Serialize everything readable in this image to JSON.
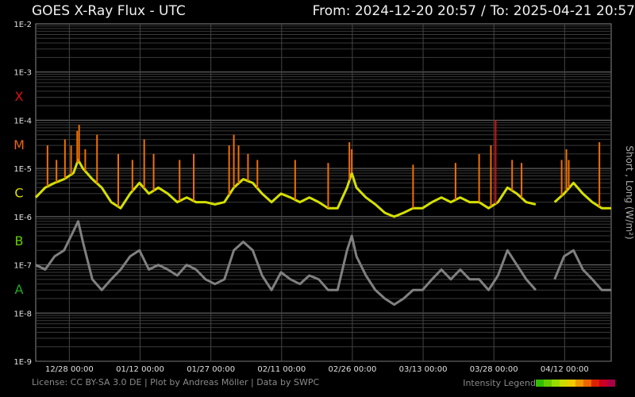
{
  "header": {
    "title": "GOES X-Ray Flux - UTC",
    "from_label": "From: 2024-12-20 20:57",
    "separator": "/",
    "to_label": "To: 2025-04-21 20:57"
  },
  "footer": {
    "license": "License: CC BY-SA 3.0 DE | Plot by Andreas Möller | Data by SWPC",
    "legend_label": "Intensity Legend",
    "legend_colors": [
      "#33bb00",
      "#66cc00",
      "#99dd00",
      "#ccdd00",
      "#eecc00",
      "#ee9900",
      "#ee6600",
      "#dd2200",
      "#cc0022",
      "#aa0044"
    ]
  },
  "colors": {
    "background": "#000000",
    "grid": "#555555",
    "short_series": "#808080",
    "long_low": "#d4e000",
    "long_mid": "#f07000",
    "long_high": "#d01010",
    "class_X": "#dd1111",
    "class_M": "#ee6611",
    "class_C": "#dddd00",
    "class_B": "#66cc00",
    "class_A": "#22aa22"
  },
  "chart_data": {
    "type": "line",
    "title": "GOES X-Ray Flux - UTC",
    "ylabel": "Short , Long (W/m²)",
    "yscale": "log",
    "ylim": [
      1e-09,
      0.01
    ],
    "y_tick_labels": [
      "1E-2",
      "1E-3",
      "1E-4",
      "1E-5",
      "1E-6",
      "1E-7",
      "1E-8",
      "1E-9"
    ],
    "flare_classes": [
      {
        "label": "X",
        "flux": 0.0001,
        "color": "#dd1111"
      },
      {
        "label": "M",
        "flux": 1e-05,
        "color": "#ee6611"
      },
      {
        "label": "C",
        "flux": 1e-06,
        "color": "#dddd00"
      },
      {
        "label": "B",
        "flux": 1e-07,
        "color": "#66cc00"
      },
      {
        "label": "A",
        "flux": 1e-08,
        "color": "#22aa22"
      }
    ],
    "x_range_days": [
      0,
      122
    ],
    "x_ticks": [
      {
        "label": "12/28 00:00",
        "day": 7.13
      },
      {
        "label": "01/12 00:00",
        "day": 22.13
      },
      {
        "label": "01/27 00:00",
        "day": 37.13
      },
      {
        "label": "02/11 00:00",
        "day": 52.13
      },
      {
        "label": "02/26 00:00",
        "day": 67.13
      },
      {
        "label": "03/13 00:00",
        "day": 82.13
      },
      {
        "label": "03/28 00:00",
        "day": 97.13
      },
      {
        "label": "04/12 00:00",
        "day": 112.13
      }
    ],
    "series": [
      {
        "name": "Long",
        "days": [
          0,
          2,
          4,
          6,
          8,
          9,
          10,
          12,
          14,
          16,
          18,
          20,
          22,
          24,
          26,
          28,
          30,
          32,
          34,
          36,
          38,
          40,
          42,
          44,
          46,
          48,
          50,
          52,
          54,
          56,
          58,
          60,
          62,
          64,
          66,
          67,
          68,
          70,
          72,
          74,
          76,
          78,
          80,
          82,
          84,
          86,
          88,
          90,
          92,
          94,
          96,
          98,
          100,
          102,
          104,
          106,
          107,
          108,
          110,
          112,
          114,
          116,
          118,
          120,
          122
        ],
        "values": [
          2.5e-06,
          4e-06,
          5e-06,
          6e-06,
          8e-06,
          1.5e-05,
          1e-05,
          6e-06,
          4e-06,
          2e-06,
          1.5e-06,
          3e-06,
          5e-06,
          3e-06,
          4e-06,
          3e-06,
          2e-06,
          2.5e-06,
          2e-06,
          2e-06,
          1.8e-06,
          2e-06,
          4e-06,
          6e-06,
          5e-06,
          3e-06,
          2e-06,
          3e-06,
          2.5e-06,
          2e-06,
          2.5e-06,
          2e-06,
          1.5e-06,
          1.5e-06,
          4e-06,
          8e-06,
          4e-06,
          2.5e-06,
          1.8e-06,
          1.2e-06,
          1e-06,
          1.2e-06,
          1.5e-06,
          1.5e-06,
          2e-06,
          2.5e-06,
          2e-06,
          2.5e-06,
          2e-06,
          2e-06,
          1.5e-06,
          2e-06,
          4e-06,
          3e-06,
          2e-06,
          1.8e-06,
          null,
          null,
          2e-06,
          3e-06,
          5e-06,
          3e-06,
          2e-06,
          1.5e-06,
          1.5e-06
        ]
      },
      {
        "name": "Short",
        "days": [
          0,
          2,
          4,
          6,
          8,
          9,
          10,
          12,
          14,
          16,
          18,
          20,
          22,
          24,
          26,
          28,
          30,
          32,
          34,
          36,
          38,
          40,
          42,
          44,
          46,
          48,
          50,
          52,
          54,
          56,
          58,
          60,
          62,
          64,
          66,
          67,
          68,
          70,
          72,
          74,
          76,
          78,
          80,
          82,
          84,
          86,
          88,
          90,
          92,
          94,
          96,
          98,
          100,
          102,
          104,
          106,
          107,
          108,
          110,
          112,
          114,
          116,
          118,
          120,
          122
        ],
        "values": [
          1e-07,
          8e-08,
          1.5e-07,
          2e-07,
          5e-07,
          8e-07,
          3e-07,
          5e-08,
          3e-08,
          5e-08,
          8e-08,
          1.5e-07,
          2e-07,
          8e-08,
          1e-07,
          8e-08,
          6e-08,
          1e-07,
          8e-08,
          5e-08,
          4e-08,
          5e-08,
          2e-07,
          3e-07,
          2e-07,
          6e-08,
          3e-08,
          7e-08,
          5e-08,
          4e-08,
          6e-08,
          5e-08,
          3e-08,
          3e-08,
          2e-07,
          4e-07,
          1.5e-07,
          6e-08,
          3e-08,
          2e-08,
          1.5e-08,
          2e-08,
          3e-08,
          3e-08,
          5e-08,
          8e-08,
          5e-08,
          8e-08,
          5e-08,
          5e-08,
          3e-08,
          6e-08,
          2e-07,
          1e-07,
          5e-08,
          3e-08,
          null,
          null,
          5e-08,
          1.5e-07,
          2e-07,
          8e-08,
          5e-08,
          3e-08,
          3e-08
        ]
      }
    ],
    "flare_peaks": [
      {
        "day": 2.5,
        "value": 3e-05
      },
      {
        "day": 4.4,
        "value": 1.5e-05
      },
      {
        "day": 6.2,
        "value": 4e-05
      },
      {
        "day": 7.5,
        "value": 3e-05
      },
      {
        "day": 8.8,
        "value": 6e-05
      },
      {
        "day": 9.2,
        "value": 8e-05
      },
      {
        "day": 10.5,
        "value": 2.5e-05
      },
      {
        "day": 13.0,
        "value": 5e-05
      },
      {
        "day": 17.5,
        "value": 2e-05
      },
      {
        "day": 20.5,
        "value": 1.5e-05
      },
      {
        "day": 23.0,
        "value": 4e-05
      },
      {
        "day": 25.0,
        "value": 2e-05
      },
      {
        "day": 30.5,
        "value": 1.5e-05
      },
      {
        "day": 33.5,
        "value": 2e-05
      },
      {
        "day": 41.0,
        "value": 3e-05
      },
      {
        "day": 42.0,
        "value": 5e-05
      },
      {
        "day": 43.0,
        "value": 3e-05
      },
      {
        "day": 45.0,
        "value": 2e-05
      },
      {
        "day": 47.0,
        "value": 1.5e-05
      },
      {
        "day": 55.0,
        "value": 1.5e-05
      },
      {
        "day": 62.0,
        "value": 1.3e-05
      },
      {
        "day": 66.5,
        "value": 3.5e-05
      },
      {
        "day": 67.0,
        "value": 2.5e-05
      },
      {
        "day": 80.0,
        "value": 1.2e-05
      },
      {
        "day": 89.0,
        "value": 1.3e-05
      },
      {
        "day": 94.0,
        "value": 2e-05
      },
      {
        "day": 96.5,
        "value": 3e-05
      },
      {
        "day": 97.5,
        "value": 0.0001
      },
      {
        "day": 101.0,
        "value": 1.5e-05
      },
      {
        "day": 103.0,
        "value": 1.3e-05
      },
      {
        "day": 111.5,
        "value": 1.5e-05
      },
      {
        "day": 112.5,
        "value": 2.5e-05
      },
      {
        "day": 113.0,
        "value": 1.5e-05
      },
      {
        "day": 119.5,
        "value": 3.5e-05
      }
    ],
    "grid": true,
    "ylabel_position": "right"
  }
}
